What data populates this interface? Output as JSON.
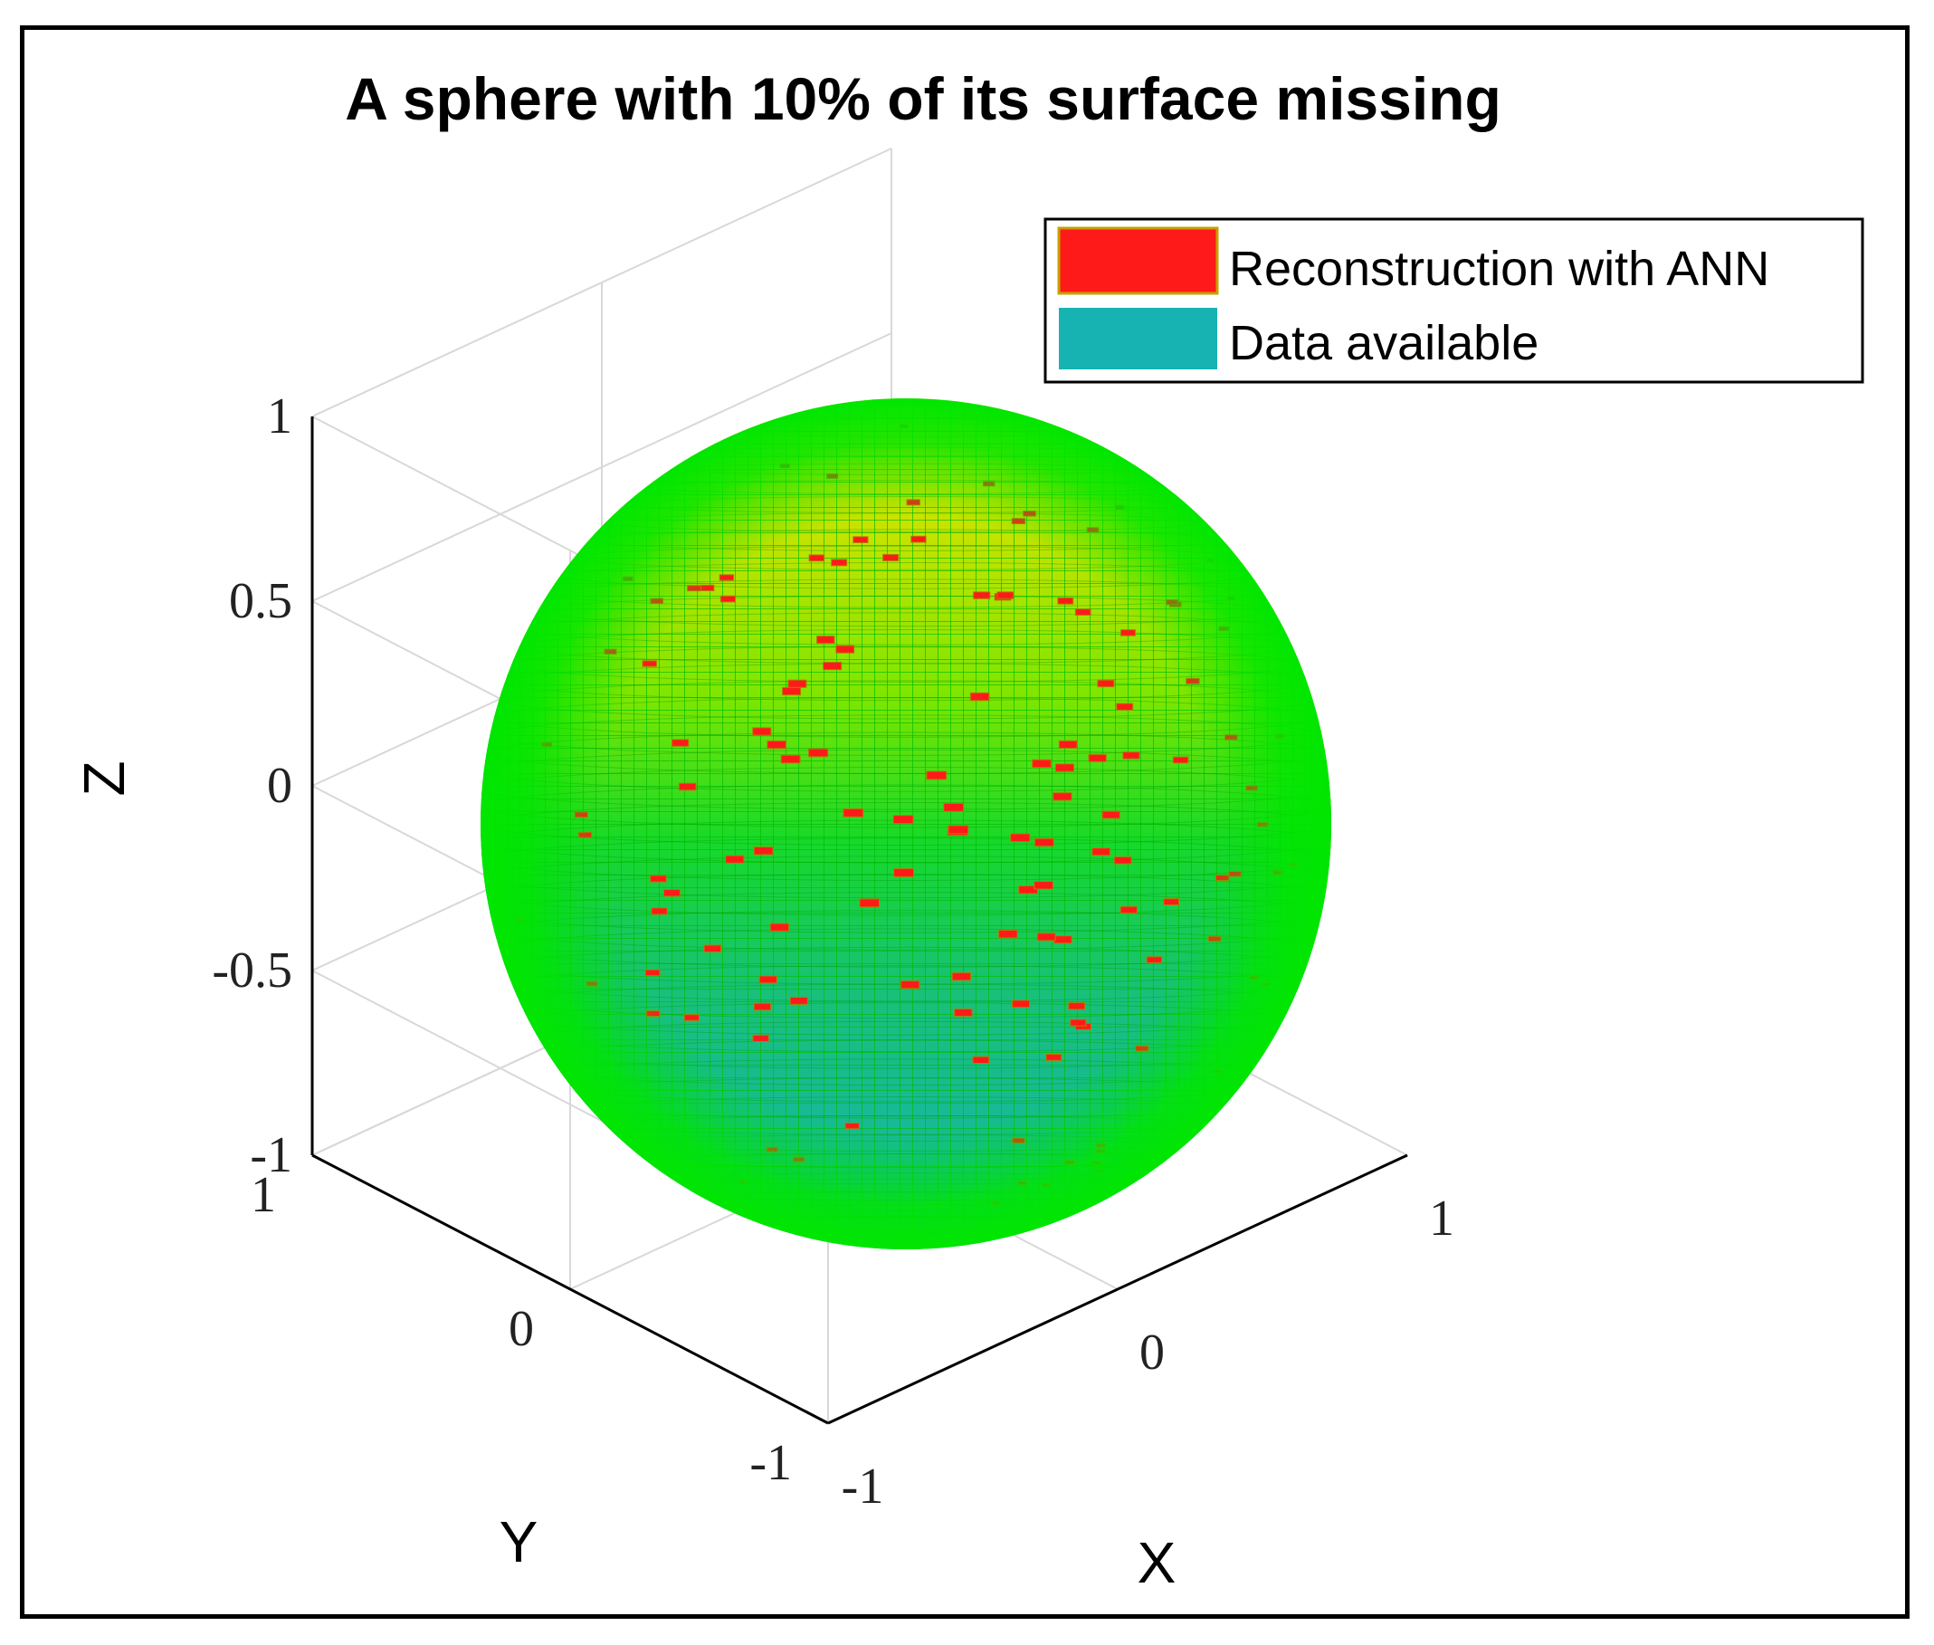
{
  "chart_data": {
    "type": "surface",
    "title": "A sphere with 10% of its surface missing",
    "xlabel": "X",
    "ylabel": "Y",
    "zlabel": "Z",
    "xlim": [
      -1,
      1
    ],
    "ylim": [
      -1,
      1
    ],
    "zlim": [
      -1,
      1
    ],
    "x_ticks": [
      "-1",
      "0",
      "1"
    ],
    "y_ticks": [
      "-1",
      "0",
      "1"
    ],
    "z_ticks": [
      "-1",
      "-0.5",
      "0",
      "0.5",
      "1"
    ],
    "grid": true,
    "legend_position": "top-right",
    "surface": {
      "shape": "unit sphere",
      "center": [
        0,
        0,
        0
      ],
      "radius": 1,
      "missing_fraction": 0.1
    },
    "series": [
      {
        "name": "Reconstruction with ANN",
        "color": "#ff1a1a"
      },
      {
        "name": "Data available",
        "color": "#17b3b3"
      }
    ],
    "colormap": [
      "#17b3b3",
      "#00e600",
      "#ffdd00"
    ]
  }
}
